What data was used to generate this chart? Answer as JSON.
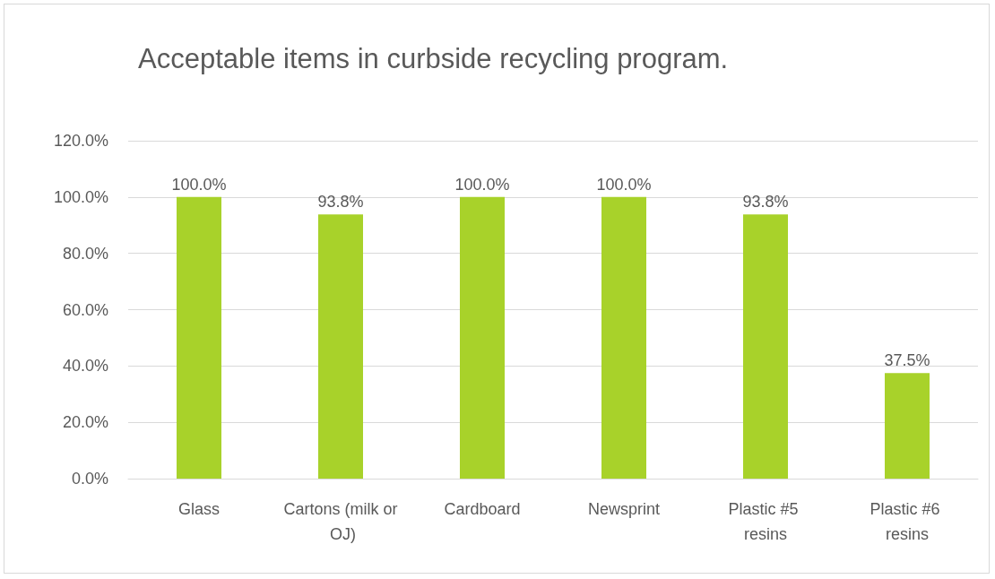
{
  "chart_data": {
    "type": "bar",
    "title": "Acceptable items in curbside recycling program.",
    "categories": [
      "Glass",
      "Cartons (milk or OJ)",
      "Cardboard",
      "Newsprint",
      "Plastic #5 resins",
      "Plastic #6 resins"
    ],
    "values": [
      100,
      93.8,
      100,
      100,
      93.8,
      37.5
    ],
    "value_labels": [
      "100.0%",
      "93.8%",
      "100.0%",
      "100.0%",
      "93.8%",
      "37.5%"
    ],
    "color": "#a8d22a",
    "ylim": [
      0,
      120
    ],
    "yticks": [
      {
        "value": 0,
        "label": "0.0%"
      },
      {
        "value": 20,
        "label": "20.0%"
      },
      {
        "value": 40,
        "label": "40.0%"
      },
      {
        "value": 60,
        "label": "60.0%"
      },
      {
        "value": 80,
        "label": "80.0%"
      },
      {
        "value": 100,
        "label": "100.0%"
      },
      {
        "value": 120,
        "label": "120.0%"
      }
    ],
    "grid": "y"
  }
}
